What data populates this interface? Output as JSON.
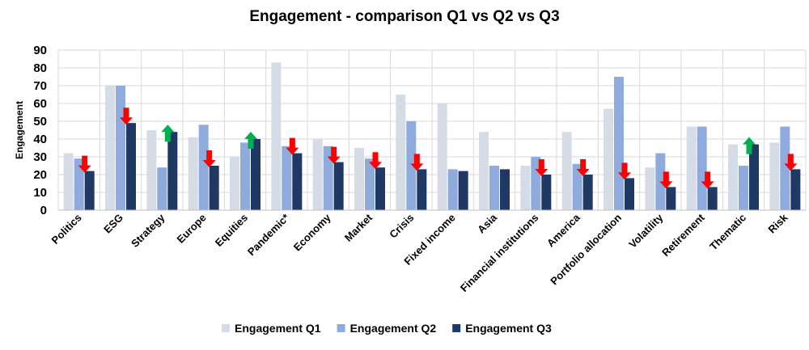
{
  "chart_data": {
    "type": "bar",
    "title": "Engagement - comparison Q1 vs Q2 vs Q3",
    "xlabel": "",
    "ylabel": "Engagement",
    "ylim": [
      0,
      90
    ],
    "yticks": [
      0,
      10,
      20,
      30,
      40,
      50,
      60,
      70,
      80,
      90
    ],
    "grid": true,
    "legend_position": "bottom",
    "categories": [
      "Politics",
      "ESG",
      "Strategy",
      "Europe",
      "Equities",
      "Pandemic*",
      "Economy",
      "Market",
      "Crisis",
      "Fixed income",
      "Asia",
      "Financial institutions",
      "America",
      "Portfolio allocation",
      "Volatility",
      "Retirement",
      "Thematic",
      "Risk"
    ],
    "series": [
      {
        "name": "Engagement Q1",
        "color": "#d6dce5",
        "values": [
          32,
          70,
          45,
          41,
          30,
          83,
          40,
          35,
          65,
          60,
          44,
          25,
          44,
          57,
          24,
          47,
          37,
          38
        ]
      },
      {
        "name": "Engagement Q2",
        "color": "#8faadc",
        "values": [
          29,
          70,
          24,
          48,
          38,
          36,
          36,
          29,
          50,
          23,
          25,
          30,
          26,
          75,
          32,
          47,
          25,
          47
        ]
      },
      {
        "name": "Engagement Q3",
        "color": "#203864",
        "values": [
          22,
          49,
          44,
          25,
          40,
          32,
          27,
          24,
          23,
          22,
          23,
          20,
          20,
          18,
          13,
          13,
          37,
          23
        ]
      }
    ],
    "trend_arrows": [
      "down",
      "down",
      "up",
      "down",
      "up",
      "down",
      "down",
      "down",
      "down",
      "none",
      "none",
      "down",
      "down",
      "down",
      "down",
      "down",
      "up",
      "down"
    ],
    "arrow_colors": {
      "up": "#00b050",
      "down": "#ff0000"
    }
  }
}
